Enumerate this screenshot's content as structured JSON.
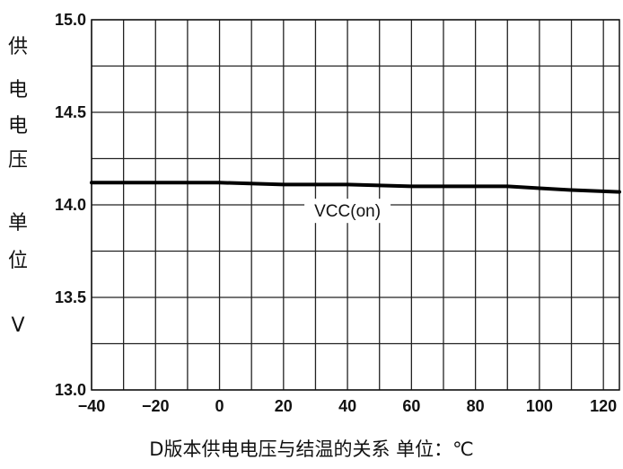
{
  "chart_data": {
    "type": "line",
    "title": "",
    "xlabel": "D版本供电电压与结温的关系 单位：℃",
    "ylabel": "供电电压 单位 V",
    "xlim": [
      -40,
      125
    ],
    "ylim": [
      13.0,
      15.0
    ],
    "x_ticks": [
      -40,
      -20,
      0,
      20,
      40,
      60,
      80,
      100,
      120
    ],
    "x_tick_labels": [
      "−40",
      "−20",
      "0",
      "20",
      "40",
      "60",
      "80",
      "100",
      "120"
    ],
    "y_ticks": [
      13.0,
      13.5,
      14.0,
      14.5,
      15.0
    ],
    "y_tick_labels": [
      "13.0",
      "13.5",
      "14.0",
      "14.5",
      "15.0"
    ],
    "grid": true,
    "series": [
      {
        "name": "VCC(on)",
        "x": [
          -40,
          -20,
          0,
          20,
          40,
          60,
          80,
          90,
          100,
          110,
          125
        ],
        "y": [
          14.12,
          14.12,
          14.12,
          14.11,
          14.11,
          14.1,
          14.1,
          14.1,
          14.09,
          14.08,
          14.07
        ]
      }
    ],
    "annotations": [
      {
        "text": "VCC(on)",
        "x": 40,
        "y": 13.97
      }
    ]
  },
  "ylabel_chars": [
    "供",
    "电",
    "电",
    "压",
    "单",
    "位",
    "V"
  ]
}
